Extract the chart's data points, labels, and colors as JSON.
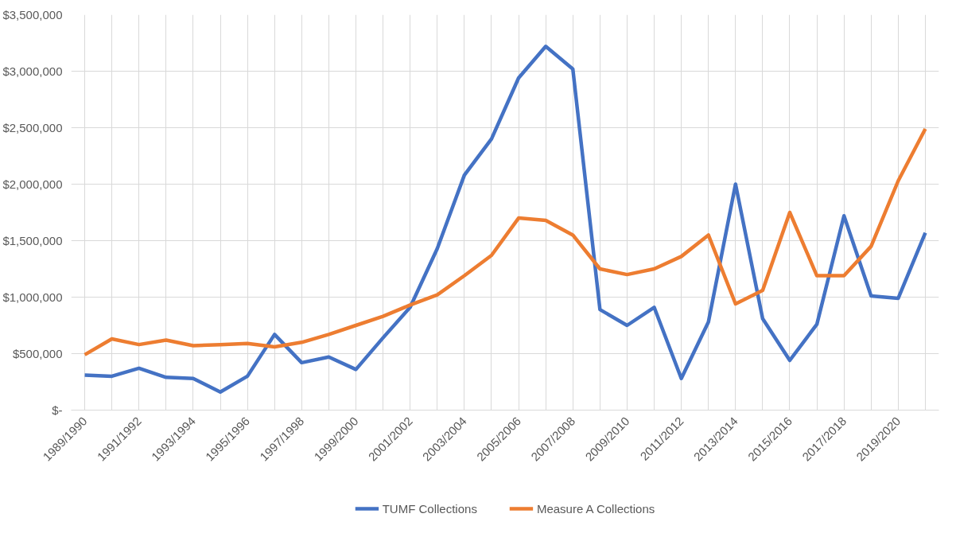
{
  "chart_data": {
    "type": "line",
    "categories": [
      "1989/1990",
      null,
      "1991/1992",
      null,
      "1993/1994",
      null,
      "1995/1996",
      null,
      "1997/1998",
      null,
      "1999/2000",
      null,
      "2001/2002",
      null,
      "2003/2004",
      null,
      "2005/2006",
      null,
      "2007/2008",
      null,
      "2009/2010",
      null,
      "2011/2012",
      null,
      "2013/2014",
      null,
      "2015/2016",
      null,
      "2017/2018",
      null,
      "2019/2020",
      null
    ],
    "series": [
      {
        "name": "TUMF Collections",
        "color": "#4472c4",
        "values": [
          310000,
          300000,
          370000,
          290000,
          280000,
          160000,
          300000,
          670000,
          420000,
          470000,
          360000,
          640000,
          910000,
          1430000,
          2080000,
          2400000,
          2940000,
          3220000,
          3020000,
          890000,
          750000,
          910000,
          280000,
          780000,
          2000000,
          810000,
          440000,
          760000,
          1720000,
          1010000,
          990000,
          1570000
        ]
      },
      {
        "name": "Measure A Collections",
        "color": "#ed7d31",
        "values": [
          490000,
          630000,
          580000,
          620000,
          570000,
          580000,
          590000,
          560000,
          600000,
          670000,
          750000,
          830000,
          930000,
          1020000,
          1190000,
          1370000,
          1700000,
          1680000,
          1550000,
          1250000,
          1200000,
          1250000,
          1360000,
          1550000,
          940000,
          1060000,
          1750000,
          1190000,
          1190000,
          1450000,
          2030000,
          2490000
        ]
      }
    ],
    "ylim": [
      0,
      3500000
    ],
    "yticks": [
      {
        "value": 0,
        "label": "$-"
      },
      {
        "value": 500000,
        "label": "$500,000"
      },
      {
        "value": 1000000,
        "label": "$1,000,000"
      },
      {
        "value": 1500000,
        "label": "$1,500,000"
      },
      {
        "value": 2000000,
        "label": "$2,000,000"
      },
      {
        "value": 2500000,
        "label": "$2,500,000"
      },
      {
        "value": 3000000,
        "label": "$3,000,000"
      },
      {
        "value": 3500000,
        "label": "$3,500,000"
      }
    ],
    "grid": true,
    "legend": "bottom",
    "marker": "none",
    "line_style": "solid"
  }
}
